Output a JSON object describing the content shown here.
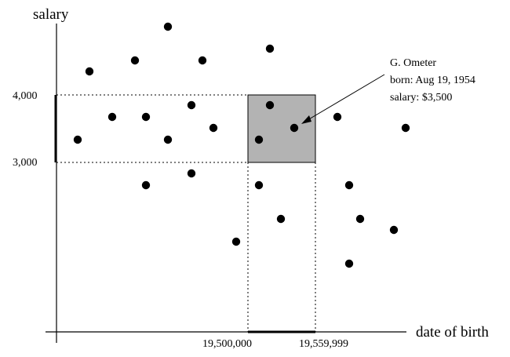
{
  "diagram": {
    "axis_labels": {
      "y": "salary",
      "x": "date of birth"
    },
    "y_ticks": [
      {
        "label": "4,000",
        "value": 4000
      },
      {
        "label": "3,000",
        "value": 3000
      }
    ],
    "x_ticks": [
      {
        "label": "19,500,000",
        "value": 19500000
      },
      {
        "label": "19,559,999",
        "value": 19559999
      }
    ],
    "annotation": {
      "lines": [
        "G. Ometer",
        "born: Aug 19, 1954",
        "salary: $3,500"
      ]
    },
    "colors": {
      "query_box_fill": "#b3b3b3",
      "points": "#000000"
    }
  }
}
